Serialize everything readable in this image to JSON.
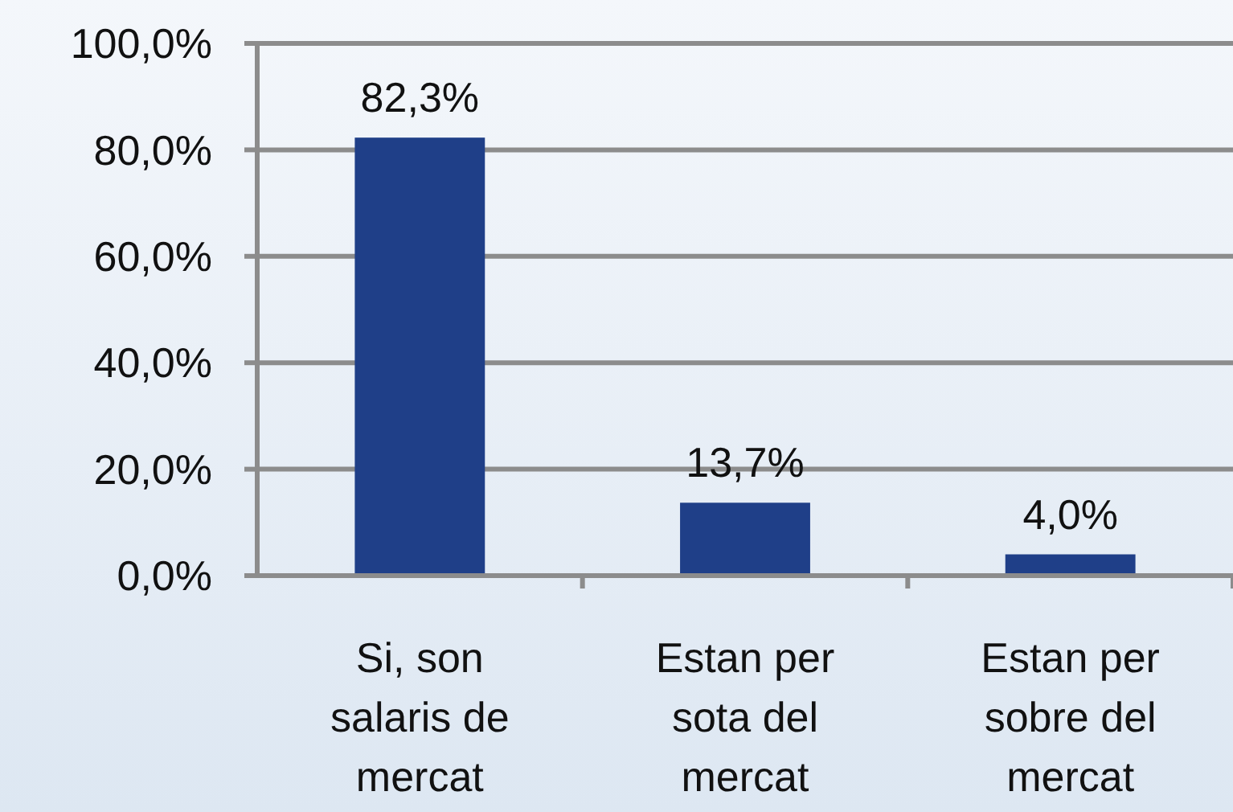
{
  "chart_data": {
    "type": "bar",
    "categories": [
      "Si, son salaris de mercat",
      "Estan per sota del mercat",
      "Estan per sobre del mercat"
    ],
    "values": [
      82.3,
      13.7,
      4.0
    ],
    "color": "#1f3f88",
    "value_labels": [
      "82,3%",
      "13,7%",
      "4,0%"
    ],
    "ylim": [
      0,
      100
    ],
    "yticks": [
      {
        "value": 0,
        "label": "0,0%"
      },
      {
        "value": 20,
        "label": "20,0%"
      },
      {
        "value": 40,
        "label": "40,0%"
      },
      {
        "value": 60,
        "label": "60,0%"
      },
      {
        "value": 80,
        "label": "80,0%"
      },
      {
        "value": 100,
        "label": "100,0%"
      }
    ],
    "grid": "y"
  }
}
